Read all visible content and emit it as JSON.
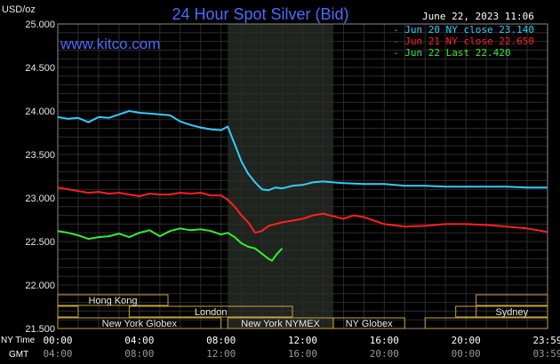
{
  "header": {
    "title": "24 Hour Spot Silver (Bid)",
    "brand": "www.kitco.com",
    "datetime": "June 22, 2023 11:06"
  },
  "axes": {
    "y_unit": "USD/oz",
    "ny_time_label": "NY Time",
    "gmt_label": "GMT"
  },
  "colors": {
    "background": "#000000",
    "grid": "#2c2c2c",
    "plot_border": "#8a8a8a",
    "highlight_band": "#1f241f",
    "title": "#4a6cff",
    "market_box_border": "#c8a23c"
  },
  "legend": [
    {
      "text": "Jun 20 NY close 23.140",
      "color": "#33ccff"
    },
    {
      "text": "Jun 21 NY close 22.650",
      "color": "#ff2020"
    },
    {
      "text": "Jun 22 Last 22.420",
      "color": "#33ee33"
    }
  ],
  "markets": [
    {
      "name": "Hong Kong",
      "row": 1,
      "segments": [
        {
          "start": 0,
          "end": 5.4
        },
        {
          "start": 20.5,
          "end": 24
        }
      ]
    },
    {
      "name": "London",
      "row": 2,
      "segments": [
        {
          "start": 0,
          "end": 1.0
        },
        {
          "start": 3.5,
          "end": 11.5
        },
        {
          "start": 19.5,
          "end": 24
        }
      ]
    },
    {
      "name": "Sydney",
      "row": 2,
      "segments": [
        {
          "start": 20.5,
          "end": 24
        }
      ]
    },
    {
      "name": "New York Globex",
      "row": 3,
      "segments": [
        {
          "start": 0,
          "end": 8.0
        },
        {
          "start": 18.0,
          "end": 24
        }
      ]
    },
    {
      "name": "New York NYMEX",
      "row": 3,
      "segments": [
        {
          "start": 8.33,
          "end": 13.5
        }
      ]
    },
    {
      "name": "NY Globex",
      "row": 3,
      "segments": [
        {
          "start": 13.5,
          "end": 17.0
        }
      ]
    }
  ],
  "chart_data": {
    "type": "line",
    "title": "24 Hour Spot Silver (Bid)",
    "ylabel": "USD/oz",
    "xlabel": "",
    "ylim": [
      21.5,
      25.0
    ],
    "y_ticks": [
      "25.000",
      "24.500",
      "24.000",
      "23.500",
      "23.000",
      "22.500",
      "22.000",
      "21.500"
    ],
    "xlim_hours": [
      0,
      24
    ],
    "x_ticks_ny": [
      "00:00",
      "04:00",
      "08:00",
      "12:00",
      "16:00",
      "20:00",
      "23:59"
    ],
    "x_ticks_gmt": [
      "04:00",
      "08:00",
      "12:00",
      "16:00",
      "20:00",
      "00:00",
      "03:59"
    ],
    "highlight_hours": [
      8.33,
      13.5
    ],
    "grid": true,
    "legend_position": "top-right",
    "series": [
      {
        "name": "Jun 20 NY close 23.140",
        "color": "#33ccff",
        "x": [
          0,
          0.5,
          1.0,
          1.5,
          2.0,
          2.5,
          3.0,
          3.5,
          4.0,
          4.5,
          5.0,
          5.5,
          6.0,
          6.5,
          7.0,
          7.5,
          8.0,
          8.33,
          8.67,
          9.0,
          9.33,
          9.67,
          10.0,
          10.33,
          10.67,
          11.0,
          11.5,
          12.0,
          12.5,
          13.0,
          13.5,
          14.0,
          15.0,
          16.0,
          17.0,
          18.0,
          19.0,
          20.0,
          21.0,
          22.0,
          23.0,
          23.98
        ],
        "y": [
          23.93,
          23.91,
          23.92,
          23.87,
          23.93,
          23.92,
          23.96,
          24.0,
          23.98,
          23.97,
          23.96,
          23.95,
          23.88,
          23.84,
          23.81,
          23.79,
          23.78,
          23.82,
          23.62,
          23.42,
          23.28,
          23.18,
          23.1,
          23.09,
          23.12,
          23.11,
          23.14,
          23.15,
          23.18,
          23.19,
          23.18,
          23.17,
          23.16,
          23.16,
          23.14,
          23.14,
          23.13,
          23.13,
          23.13,
          23.13,
          23.12,
          23.12
        ]
      },
      {
        "name": "Jun 21 NY close 22.650",
        "color": "#ff2020",
        "x": [
          0,
          0.5,
          1.0,
          1.5,
          2.0,
          2.5,
          3.0,
          3.5,
          4.0,
          4.5,
          5.0,
          5.5,
          6.0,
          6.5,
          7.0,
          7.5,
          8.0,
          8.33,
          8.67,
          9.0,
          9.33,
          9.67,
          10.0,
          10.33,
          10.67,
          11.0,
          11.5,
          12.0,
          12.5,
          13.0,
          13.5,
          14.0,
          14.5,
          15.0,
          16.0,
          17.0,
          18.0,
          19.0,
          20.0,
          21.0,
          22.0,
          23.0,
          23.98
        ],
        "y": [
          23.12,
          23.1,
          23.08,
          23.06,
          23.07,
          23.05,
          23.06,
          23.04,
          23.02,
          23.05,
          23.04,
          23.04,
          23.06,
          23.05,
          23.06,
          23.03,
          23.03,
          22.98,
          22.9,
          22.8,
          22.72,
          22.6,
          22.62,
          22.68,
          22.7,
          22.72,
          22.74,
          22.76,
          22.8,
          22.82,
          22.79,
          22.76,
          22.8,
          22.78,
          22.7,
          22.67,
          22.68,
          22.7,
          22.7,
          22.69,
          22.67,
          22.65,
          22.61
        ]
      },
      {
        "name": "Jun 22 Last 22.420",
        "color": "#33ee33",
        "x": [
          0,
          0.5,
          1.0,
          1.5,
          2.0,
          2.5,
          3.0,
          3.5,
          4.0,
          4.5,
          5.0,
          5.5,
          6.0,
          6.5,
          7.0,
          7.5,
          8.0,
          8.33,
          8.67,
          9.0,
          9.33,
          9.67,
          10.0,
          10.33,
          10.5,
          10.75,
          11.0
        ],
        "y": [
          22.62,
          22.6,
          22.57,
          22.53,
          22.55,
          22.56,
          22.59,
          22.55,
          22.6,
          22.63,
          22.56,
          22.62,
          22.65,
          22.63,
          22.64,
          22.62,
          22.58,
          22.6,
          22.55,
          22.48,
          22.44,
          22.42,
          22.36,
          22.3,
          22.28,
          22.36,
          22.42
        ]
      }
    ]
  }
}
